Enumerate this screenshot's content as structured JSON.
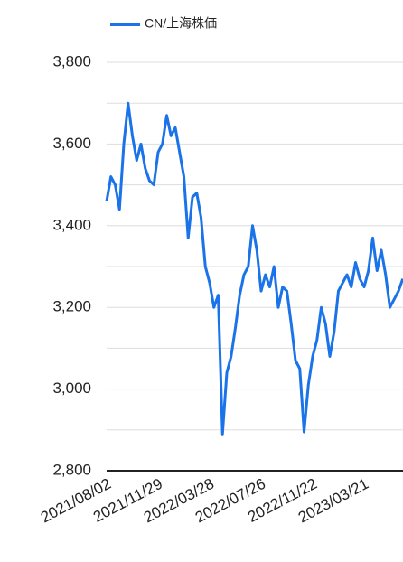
{
  "chart_data": {
    "type": "line",
    "categories": [
      "2021/08/02",
      null,
      null,
      null,
      null,
      null,
      null,
      null,
      null,
      null,
      null,
      null,
      "2021/11/29",
      null,
      null,
      null,
      null,
      null,
      null,
      null,
      null,
      null,
      null,
      null,
      "2022/03/28",
      null,
      null,
      null,
      null,
      null,
      null,
      null,
      null,
      null,
      null,
      null,
      "2022/07/26",
      null,
      null,
      null,
      null,
      null,
      null,
      null,
      null,
      null,
      null,
      null,
      "2022/11/22",
      null,
      null,
      null,
      null,
      null,
      null,
      null,
      null,
      null,
      null,
      null,
      "2023/03/21",
      null,
      null,
      null,
      null,
      null,
      null,
      null,
      null,
      null
    ],
    "series": [
      {
        "name": "CN/上海株価",
        "color": "#1a73e8",
        "values": [
          3460,
          3520,
          3500,
          3440,
          3600,
          3700,
          3620,
          3560,
          3600,
          3540,
          3510,
          3500,
          3580,
          3600,
          3670,
          3620,
          3640,
          3580,
          3520,
          3370,
          3470,
          3480,
          3420,
          3300,
          3260,
          3200,
          3230,
          2890,
          3040,
          3080,
          3150,
          3230,
          3280,
          3300,
          3400,
          3340,
          3240,
          3280,
          3250,
          3300,
          3200,
          3250,
          3240,
          3160,
          3070,
          3050,
          2895,
          3010,
          3080,
          3120,
          3200,
          3160,
          3080,
          3140,
          3240,
          3260,
          3280,
          3250,
          3310,
          3270,
          3250,
          3290,
          3370,
          3290,
          3340,
          3280,
          3200,
          3220,
          3240,
          3270
        ]
      }
    ],
    "ylim": [
      2800,
      3800
    ],
    "yticks": [
      {
        "value": 2800,
        "label": "2,800"
      },
      {
        "value": 3000,
        "label": "3,000"
      },
      {
        "value": 3200,
        "label": "3,200"
      },
      {
        "value": 3400,
        "label": "3,400"
      },
      {
        "value": 3600,
        "label": "3,600"
      },
      {
        "value": 3800,
        "label": "3,800"
      }
    ],
    "minor_yticks": [
      2900,
      3100,
      3300,
      3500,
      3700
    ],
    "grid": true,
    "legend": "top"
  }
}
